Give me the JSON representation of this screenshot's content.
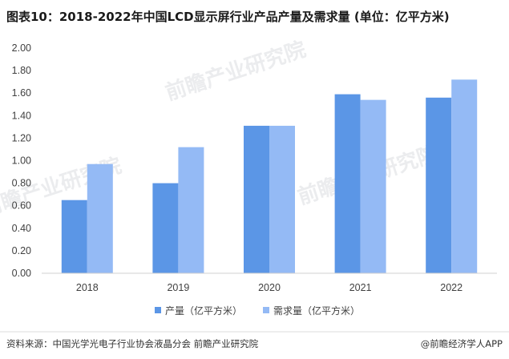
{
  "title": "图表10：2018-2022年中国LCD显示屏行业产品产量及需求量 (单位：亿平方米)",
  "watermark": "前瞻产业研究院",
  "source": "资料来源：中国光学光电子行业协会液晶分会 前瞻产业研究院",
  "brand": "@前瞻经济学人APP",
  "colors": {
    "production": "#5b96e6",
    "demand": "#94baf5"
  },
  "chart_data": {
    "type": "bar",
    "categories": [
      "2018",
      "2019",
      "2020",
      "2021",
      "2022"
    ],
    "series": [
      {
        "name": "产量（亿平方米）",
        "values": [
          0.65,
          0.8,
          1.31,
          1.59,
          1.56
        ]
      },
      {
        "name": "需求量（亿平方米）",
        "values": [
          0.97,
          1.12,
          1.31,
          1.54,
          1.72
        ]
      }
    ],
    "ylim": [
      0,
      2.0
    ],
    "yticks": [
      "0.00",
      "0.20",
      "0.40",
      "0.60",
      "0.80",
      "1.00",
      "1.20",
      "1.40",
      "1.60",
      "1.80",
      "2.00"
    ],
    "grid": false,
    "legend_position": "bottom"
  }
}
